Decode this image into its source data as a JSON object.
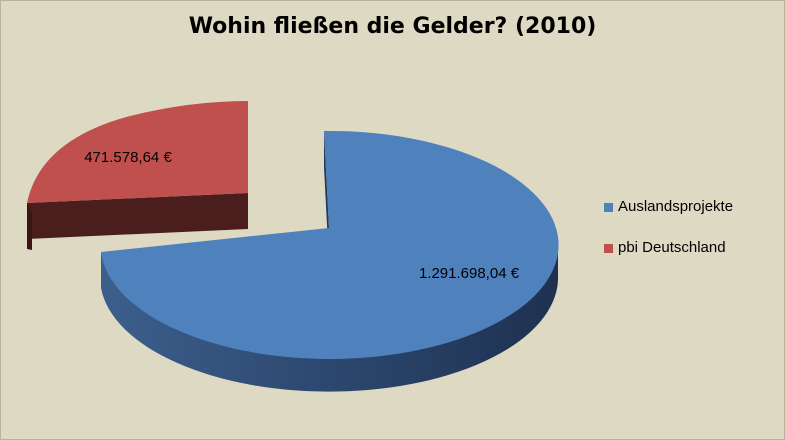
{
  "chart_data": {
    "type": "pie",
    "title": "Wohin fließen die Gelder? (2010)",
    "three_d": true,
    "exploded_slice": "pbi Deutschland",
    "legend_position": "right",
    "categories": [
      "Auslandsprojekte",
      "pbi Deutschland"
    ],
    "values": [
      1291698.04,
      471578.64
    ],
    "data_labels": [
      "1.291.698,04 €",
      "471.578,64 €"
    ],
    "colors": [
      "#4f81bd",
      "#c0504d"
    ]
  },
  "legend": {
    "items": [
      {
        "label": "Auslandsprojekte",
        "color": "#4f81bd"
      },
      {
        "label": "pbi Deutschland",
        "color": "#c0504d"
      }
    ]
  }
}
